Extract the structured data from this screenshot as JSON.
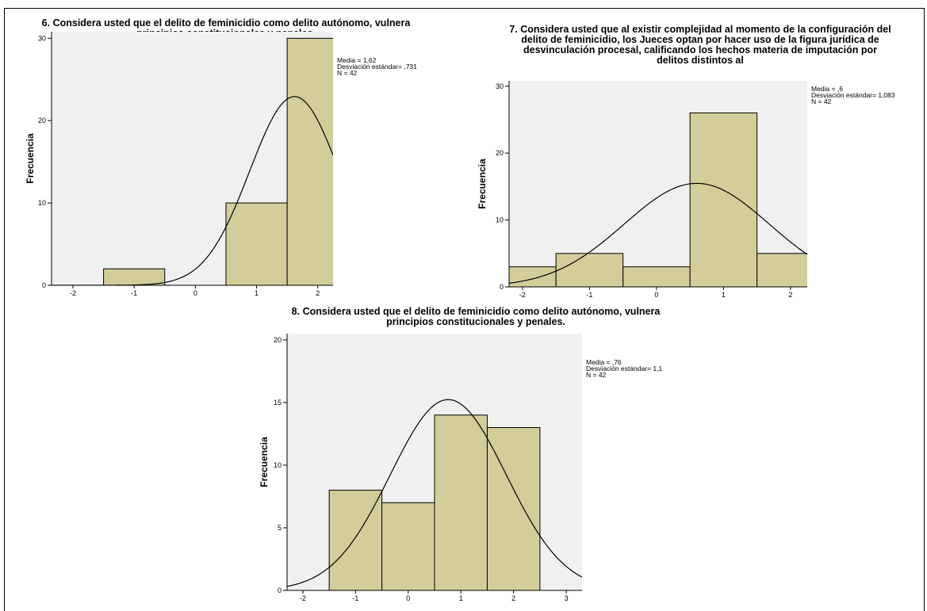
{
  "chart_data": [
    {
      "type": "bar",
      "title_lines": [
        "6. Considera usted que el delito de feminicidio como delito autónomo, vulnera",
        "principios constitucionales y penales."
      ],
      "ylabel": "Frecuencia",
      "xlim": [
        -2.35,
        2.25
      ],
      "ylim": [
        0,
        30.8
      ],
      "xticks": [
        -2,
        -1,
        0,
        1,
        2
      ],
      "yticks": [
        0,
        10,
        20,
        30
      ],
      "bins": [
        {
          "left": -1.5,
          "right": -0.5,
          "value": 2
        },
        {
          "left": 0.5,
          "right": 1.5,
          "value": 10
        },
        {
          "left": 1.5,
          "right": 2.5,
          "value": 30
        }
      ],
      "normal_curve": {
        "mean": 1.62,
        "sd": 0.731,
        "n": 42,
        "bin_width": 1
      },
      "stats_lines": [
        "Media = 1,62",
        "Desviación estándar= ,731",
        "N = 42"
      ]
    },
    {
      "type": "bar",
      "title_lines": [
        "7. Considera usted que al existir complejidad al momento de la configuración del",
        "delito de feminicidio, los Jueces optan por hacer uso de la figura jurídica de",
        "desvinculación procesal, calificando los hechos materia de imputación por",
        "delitos distintos al"
      ],
      "ylabel": "Frecuencia",
      "xlim": [
        -2.2,
        2.25
      ],
      "ylim": [
        0,
        30.8
      ],
      "xticks": [
        -2,
        -1,
        0,
        1,
        2
      ],
      "yticks": [
        0,
        10,
        20,
        30
      ],
      "bins": [
        {
          "left": -2.5,
          "right": -1.5,
          "value": 3
        },
        {
          "left": -1.5,
          "right": -0.5,
          "value": 5
        },
        {
          "left": -0.5,
          "right": 0.5,
          "value": 3
        },
        {
          "left": 0.5,
          "right": 1.5,
          "value": 26
        },
        {
          "left": 1.5,
          "right": 2.5,
          "value": 5
        }
      ],
      "normal_curve": {
        "mean": 0.6,
        "sd": 1.083,
        "n": 42,
        "bin_width": 1
      },
      "stats_lines": [
        "Media = ,6",
        "Desviación estándar= 1,083",
        "N = 42"
      ]
    },
    {
      "type": "bar",
      "title_lines": [
        "8. Considera usted que el delito de feminicidio como delito autónomo, vulnera",
        "principios constitucionales y penales."
      ],
      "ylabel": "Frecuencia",
      "xlim": [
        -2.3,
        3.3
      ],
      "ylim": [
        0,
        20.5
      ],
      "xticks": [
        -2,
        -1,
        0,
        1,
        2,
        3
      ],
      "yticks": [
        0,
        5,
        10,
        15,
        20
      ],
      "bins": [
        {
          "left": -1.5,
          "right": -0.5,
          "value": 8
        },
        {
          "left": -0.5,
          "right": 0.5,
          "value": 7
        },
        {
          "left": 0.5,
          "right": 1.5,
          "value": 14
        },
        {
          "left": 1.5,
          "right": 2.5,
          "value": 13
        }
      ],
      "normal_curve": {
        "mean": 0.76,
        "sd": 1.1,
        "n": 42,
        "bin_width": 1
      },
      "stats_lines": [
        "Media = ,76",
        "Desviación estándar= 1,1",
        "N = 42"
      ]
    }
  ],
  "colors": {
    "bar_fill": "#d3cd9a",
    "bar_stroke": "#000000",
    "plot_bg": "#f0f0f0",
    "curve": "#000000"
  }
}
